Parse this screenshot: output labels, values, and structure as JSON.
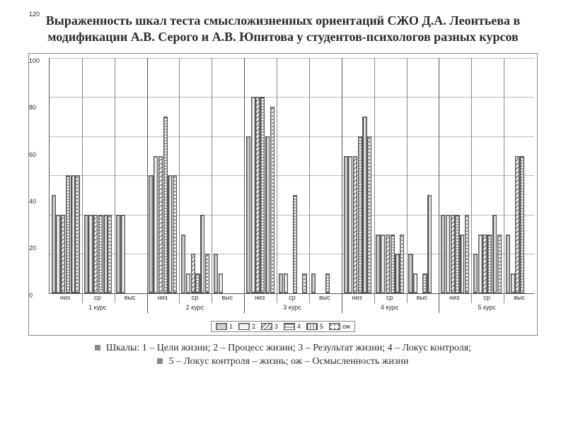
{
  "title": "Выраженность шкал теста смысложизненных ориентаций СЖО Д.А. Леонтьева в модификации А.В. Серого и А.В. Юпитова у студентов-психологов разных курсов",
  "footer1": "Шкалы: 1 – Цели жизни; 2 – Процесс жизни; 3 – Результат жизни; 4 – Локус контроля;",
  "footer2": "5 – Локус контроля – жизнь; ож – Осмысленность жизни",
  "chart": {
    "type": "bar",
    "ylim": [
      0,
      120
    ],
    "yticks": [
      0,
      20,
      40,
      60,
      80,
      100,
      120
    ],
    "grid_color": "#bbbbbb",
    "axis_color": "#555555",
    "background_color": "#ffffff",
    "sub_labels": [
      "низ",
      "ср",
      "выс"
    ],
    "courses": [
      "1 курс",
      "2 курс",
      "3 курс",
      "4 курс",
      "5 курс"
    ],
    "series_labels": [
      "1",
      "2",
      "3",
      "4",
      "5",
      "ож"
    ],
    "series_colors": [
      "#d0d0d0",
      "#f5f5f5",
      "pattern-diag",
      "pattern-hstripe",
      "pattern-vstripe",
      "pattern-dots"
    ],
    "data": [
      [
        [
          50,
          40,
          40,
          60,
          60,
          60
        ],
        [
          40,
          40,
          40,
          40,
          40,
          40
        ],
        [
          40,
          40,
          0,
          0,
          0,
          0
        ]
      ],
      [
        [
          60,
          70,
          70,
          90,
          60,
          60
        ],
        [
          30,
          10,
          20,
          10,
          40,
          20
        ],
        [
          20,
          10,
          0,
          0,
          0,
          0
        ]
      ],
      [
        [
          80,
          100,
          100,
          100,
          80,
          95
        ],
        [
          10,
          10,
          0,
          50,
          0,
          10
        ],
        [
          10,
          0,
          0,
          10,
          0,
          0
        ]
      ],
      [
        [
          70,
          70,
          70,
          80,
          90,
          80
        ],
        [
          30,
          30,
          30,
          30,
          20,
          30
        ],
        [
          20,
          10,
          0,
          10,
          50,
          0
        ]
      ],
      [
        [
          40,
          40,
          40,
          40,
          30,
          40
        ],
        [
          20,
          30,
          30,
          30,
          40,
          30
        ],
        [
          30,
          10,
          70,
          70,
          0,
          0
        ]
      ]
    ],
    "bar_fontsize": 9,
    "title_fontsize": 18
  }
}
